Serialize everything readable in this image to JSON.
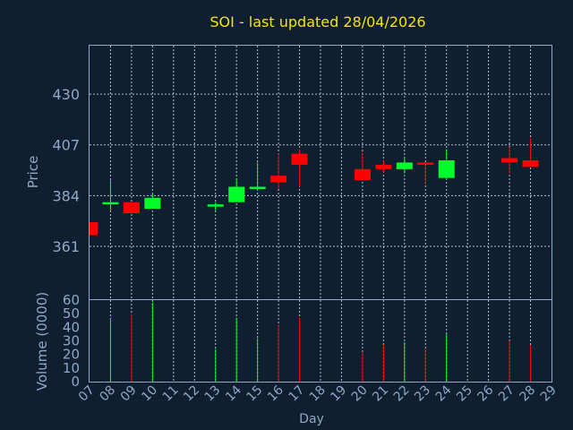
{
  "chart_data": {
    "type": "candlestick",
    "title": "SOI - last updated 28/04/2026",
    "xlabel": "Day",
    "ylabel": "Price",
    "volume_label": "Volume (0000)",
    "grid": true,
    "x_ticks": [
      "07",
      "08",
      "09",
      "10",
      "11",
      "12",
      "13",
      "14",
      "15",
      "16",
      "17",
      "18",
      "19",
      "20",
      "21",
      "22",
      "23",
      "24",
      "25",
      "26",
      "27",
      "28",
      "29"
    ],
    "price_ticks": [
      361,
      384,
      407,
      430
    ],
    "price_range": [
      337,
      452
    ],
    "volume_ticks": [
      0,
      10,
      20,
      30,
      40,
      50,
      60
    ],
    "volume_range": [
      0,
      60
    ],
    "colors": {
      "up": "#00ff2a",
      "down": "#ff0000",
      "background": "#0f1f30",
      "title": "#f2e600",
      "axis": "#8fa8c8"
    },
    "candles": [
      {
        "day": "07",
        "open": 372,
        "close": 366,
        "high": 372,
        "low": 366,
        "volume": 0
      },
      {
        "day": "08",
        "open": 380,
        "close": 381,
        "high": 391,
        "low": 377,
        "volume": 47
      },
      {
        "day": "09",
        "open": 381,
        "close": 376,
        "high": 381,
        "low": 376,
        "volume": 50
      },
      {
        "day": "10",
        "open": 378,
        "close": 383,
        "high": 385,
        "low": 378,
        "volume": 58
      },
      {
        "day": "13",
        "open": 379,
        "close": 380,
        "high": 381,
        "low": 377,
        "volume": 24
      },
      {
        "day": "14",
        "open": 381,
        "close": 388,
        "high": 392,
        "low": 381,
        "volume": 47
      },
      {
        "day": "15",
        "open": 387,
        "close": 388,
        "high": 399,
        "low": 387,
        "volume": 32
      },
      {
        "day": "16",
        "open": 393,
        "close": 390,
        "high": 403,
        "low": 387,
        "volume": 42
      },
      {
        "day": "17",
        "open": 403,
        "close": 398,
        "high": 405,
        "low": 388,
        "volume": 47
      },
      {
        "day": "20",
        "open": 396,
        "close": 391,
        "high": 404,
        "low": 391,
        "volume": 22
      },
      {
        "day": "21",
        "open": 398,
        "close": 396,
        "high": 400,
        "low": 394,
        "volume": 27
      },
      {
        "day": "22",
        "open": 396,
        "close": 399,
        "high": 401,
        "low": 394,
        "volume": 29
      },
      {
        "day": "23",
        "open": 399,
        "close": 398,
        "high": 399,
        "low": 389,
        "volume": 24
      },
      {
        "day": "24",
        "open": 392,
        "close": 400,
        "high": 405,
        "low": 392,
        "volume": 35
      },
      {
        "day": "27",
        "open": 401,
        "close": 399,
        "high": 406,
        "low": 394,
        "volume": 30
      },
      {
        "day": "28",
        "open": 400,
        "close": 397,
        "high": 410,
        "low": 397,
        "volume": 27
      }
    ]
  }
}
